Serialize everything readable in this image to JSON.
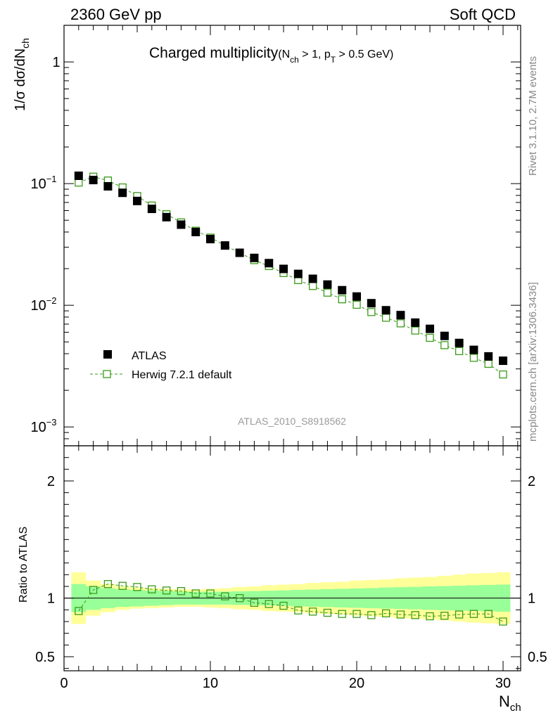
{
  "header": {
    "left": "2360 GeV pp",
    "right": "Soft QCD"
  },
  "side_labels": {
    "top": "Rivet 3.1.10,  2.7M events",
    "bottom": "mcplots.cern.ch [arXiv:1306.3436]"
  },
  "colors": {
    "data": "#000000",
    "mc": "#3a9a1a",
    "band_inner": "#99ff99",
    "band_outer": "#ffff99"
  },
  "chart_data": [
    {
      "type": "scatter",
      "title": "Charged multiplicity",
      "title_cond_pre": "(N",
      "title_cond_sub1": "ch",
      "title_cond_mid": " > 1, p",
      "title_cond_sub2": "T",
      "title_cond_post": " > 0.5 GeV)",
      "ylabel_main": "1/σ dσ/dN",
      "ylabel_sub": "ch",
      "yscale": "log",
      "ylim": [
        0.0007,
        2.0
      ],
      "xlim": [
        0,
        31.2
      ],
      "y_ticks": [
        {
          "value": 1,
          "base": "1",
          "exp": ""
        },
        {
          "value": 0.1,
          "base": "10",
          "exp": "−1"
        },
        {
          "value": 0.01,
          "base": "10",
          "exp": "−2"
        },
        {
          "value": 0.001,
          "base": "10",
          "exp": "−3"
        }
      ],
      "x": [
        1,
        2,
        3,
        4,
        5,
        6,
        7,
        8,
        9,
        10,
        11,
        12,
        13,
        14,
        15,
        16,
        17,
        18,
        19,
        20,
        21,
        22,
        23,
        24,
        25,
        26,
        27,
        28,
        29,
        30
      ],
      "series": [
        {
          "name": "ATLAS",
          "marker": "filled-square",
          "values": [
            0.116,
            0.107,
            0.095,
            0.084,
            0.072,
            0.062,
            0.053,
            0.046,
            0.04,
            0.035,
            0.031,
            0.027,
            0.0245,
            0.0222,
            0.0199,
            0.0181,
            0.0165,
            0.0148,
            0.0133,
            0.0118,
            0.0104,
            0.0091,
            0.0083,
            0.0072,
            0.0064,
            0.0056,
            0.0049,
            0.0043,
            0.0038,
            0.0035
          ]
        },
        {
          "name": "Herwig 7.2.1 default",
          "marker": "open-square-dashed",
          "values": [
            0.102,
            0.114,
            0.106,
            0.093,
            0.079,
            0.066,
            0.056,
            0.048,
            0.041,
            0.036,
            0.031,
            0.027,
            0.0235,
            0.021,
            0.0184,
            0.0161,
            0.0144,
            0.0127,
            0.0112,
            0.0101,
            0.0088,
            0.0079,
            0.0071,
            0.0062,
            0.0054,
            0.0047,
            0.0042,
            0.0037,
            0.0033,
            0.0027
          ]
        }
      ],
      "watermark": "ATLAS_2010_S8918562"
    },
    {
      "type": "line",
      "ylabel": "Ratio to ATLAS",
      "xlabel_main": "N",
      "xlabel_sub": "ch",
      "ylim": [
        0.38,
        2.3
      ],
      "xlim": [
        0,
        31.2
      ],
      "y_ticks": [
        {
          "value": 0.5,
          "label": "0.5"
        },
        {
          "value": 1,
          "label": "1"
        },
        {
          "value": 2,
          "label": "2"
        }
      ],
      "x_ticks": [
        {
          "value": 0,
          "label": "0"
        },
        {
          "value": 10,
          "label": "10"
        },
        {
          "value": 20,
          "label": "20"
        },
        {
          "value": 30,
          "label": "30"
        }
      ],
      "reference": 1.0,
      "x": [
        1,
        2,
        3,
        4,
        5,
        6,
        7,
        8,
        9,
        10,
        11,
        12,
        13,
        14,
        15,
        16,
        17,
        18,
        19,
        20,
        21,
        22,
        23,
        24,
        25,
        26,
        27,
        28,
        29,
        30
      ],
      "ratio": [
        0.89,
        1.07,
        1.12,
        1.105,
        1.095,
        1.075,
        1.065,
        1.06,
        1.04,
        1.04,
        1.015,
        1.0,
        0.96,
        0.95,
        0.935,
        0.895,
        0.885,
        0.875,
        0.865,
        0.865,
        0.855,
        0.87,
        0.86,
        0.855,
        0.845,
        0.85,
        0.86,
        0.865,
        0.865,
        0.8
      ],
      "band_inner": [
        0.12,
        0.1,
        0.085,
        0.075,
        0.07,
        0.065,
        0.06,
        0.055,
        0.055,
        0.055,
        0.055,
        0.058,
        0.06,
        0.063,
        0.066,
        0.07,
        0.073,
        0.077,
        0.08,
        0.083,
        0.086,
        0.09,
        0.093,
        0.096,
        0.1,
        0.103,
        0.106,
        0.11,
        0.113,
        0.116
      ],
      "band_outer": [
        0.22,
        0.15,
        0.12,
        0.1,
        0.09,
        0.085,
        0.08,
        0.075,
        0.075,
        0.08,
        0.085,
        0.095,
        0.1,
        0.11,
        0.115,
        0.12,
        0.13,
        0.135,
        0.14,
        0.15,
        0.155,
        0.16,
        0.17,
        0.175,
        0.18,
        0.19,
        0.2,
        0.21,
        0.215,
        0.22
      ]
    }
  ]
}
